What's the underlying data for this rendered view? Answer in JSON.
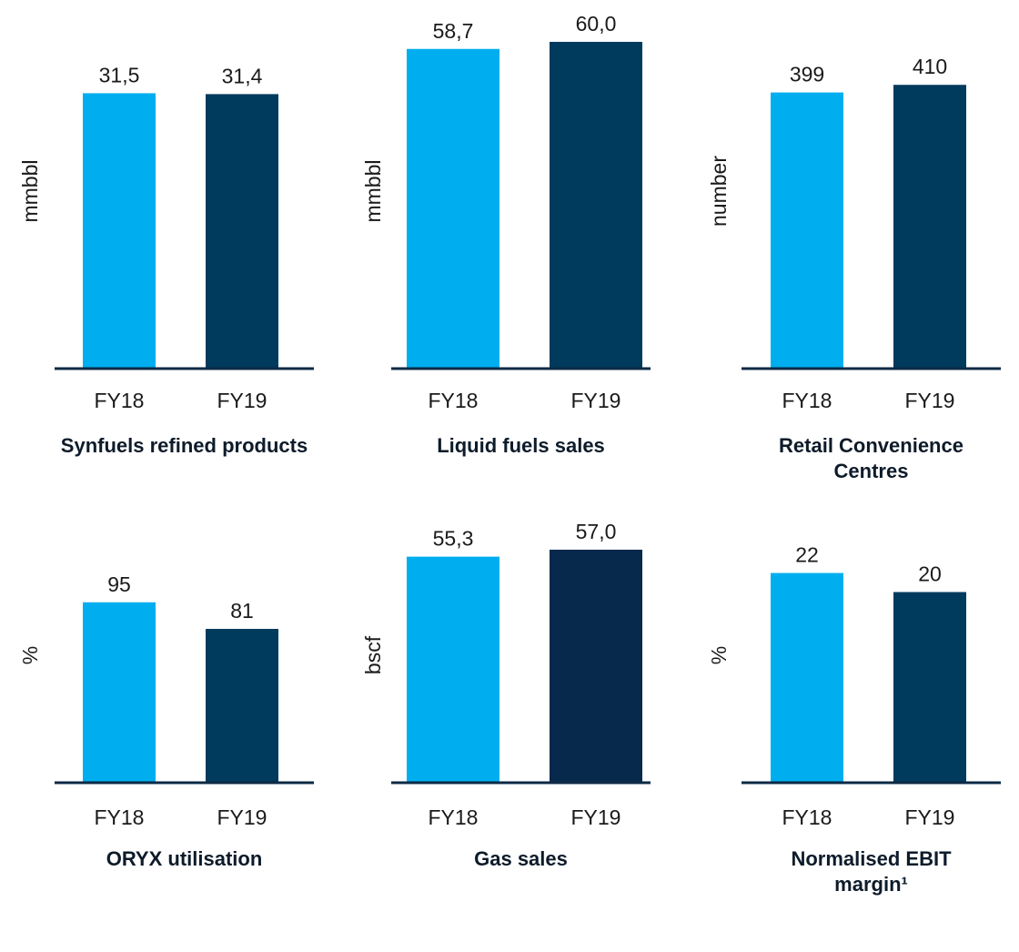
{
  "chart_data": [
    {
      "type": "bar",
      "title": "Synfuels refined products",
      "y_label": "mmbbl",
      "categories": [
        "FY18",
        "FY19"
      ],
      "values": [
        31.5,
        31.4
      ],
      "value_labels": [
        "31,5",
        "31,4"
      ],
      "colors": [
        "#00aeef",
        "#003a5d"
      ],
      "ylim": [
        0,
        38
      ]
    },
    {
      "type": "bar",
      "title": "Liquid fuels sales",
      "y_label": "mmbbl",
      "categories": [
        "FY18",
        "FY19"
      ],
      "values": [
        58.7,
        60.0
      ],
      "value_labels": [
        "58,7",
        "60,0"
      ],
      "colors": [
        "#00aeef",
        "#003a5d"
      ],
      "ylim": [
        0,
        61
      ]
    },
    {
      "type": "bar",
      "title": "Retail Convenience Centres",
      "y_label": "number",
      "categories": [
        "FY18",
        "FY19"
      ],
      "values": [
        399,
        410
      ],
      "colors": [
        "#00aeef",
        "#003a5d"
      ],
      "ylim": [
        0,
        480
      ]
    },
    {
      "type": "bar",
      "title": "ORYX utilisation",
      "y_label": "%",
      "categories": [
        "FY18",
        "FY19"
      ],
      "values": [
        95,
        81
      ],
      "colors": [
        "#00aeef",
        "#003a5d"
      ],
      "ylim": [
        0,
        127
      ]
    },
    {
      "type": "bar",
      "title": "Gas sales",
      "y_label": "bscf",
      "categories": [
        "FY18",
        "FY19"
      ],
      "values": [
        55.3,
        57.0
      ],
      "value_labels": [
        "55,3",
        "57,0"
      ],
      "colors": [
        "#00aeef",
        "#06294c"
      ],
      "ylim": [
        0,
        59
      ]
    },
    {
      "type": "bar",
      "title": "Normalised EBIT margin¹",
      "y_label": "%",
      "categories": [
        "FY18",
        "FY19"
      ],
      "values": [
        22,
        20
      ],
      "colors": [
        "#00aeef",
        "#003a5d"
      ],
      "ylim": [
        0,
        25.3
      ]
    }
  ]
}
